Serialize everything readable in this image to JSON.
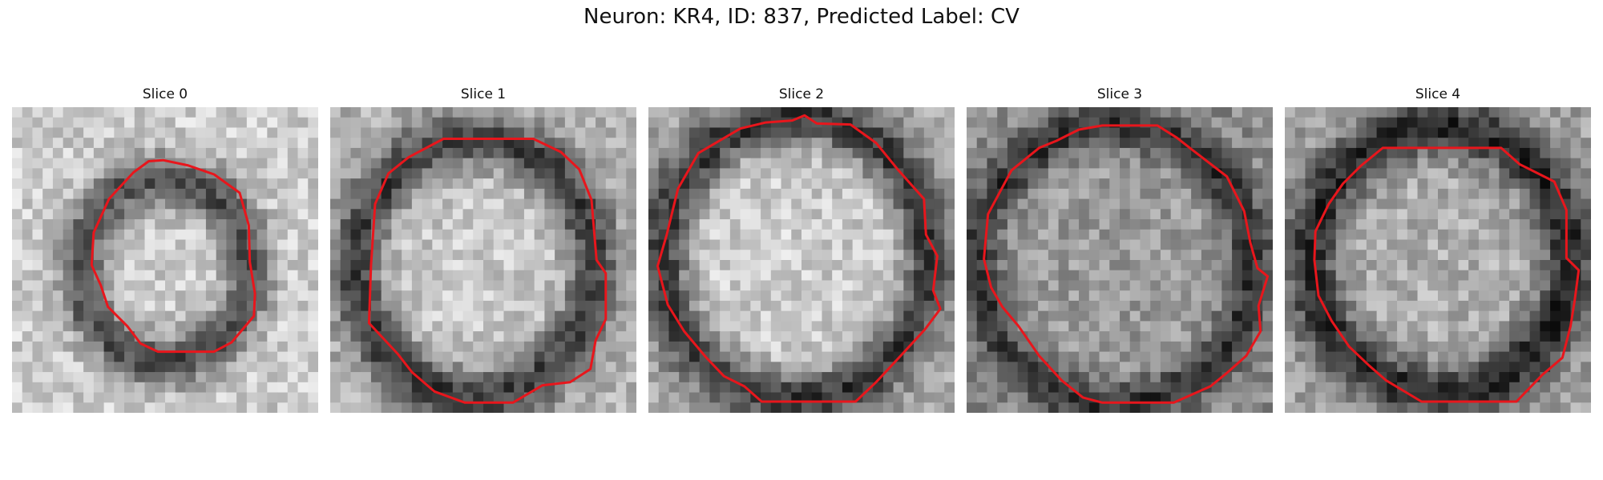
{
  "figure": {
    "title": "Neuron: KR4, ID: 837, Predicted Label: CV"
  },
  "colors": {
    "contour": "#e8161c",
    "background": "#ffffff"
  },
  "panels": [
    {
      "title": "Slice 0",
      "kind": "small-ring"
    },
    {
      "title": "Slice 1",
      "kind": "large-ring"
    },
    {
      "title": "Slice 2",
      "kind": "full-ring"
    },
    {
      "title": "Slice 3",
      "kind": "noisy-ring"
    },
    {
      "title": "Slice 4",
      "kind": "bright-ring"
    }
  ]
}
